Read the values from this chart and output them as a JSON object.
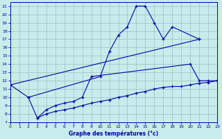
{
  "title": "Graphe des températures (°c)",
  "bg_color": "#c8eceb",
  "grid_color": "#9bbfbe",
  "line_color": "#0000aa",
  "xlim": [
    0,
    23
  ],
  "ylim": [
    7,
    21.5
  ],
  "xticks": [
    0,
    1,
    2,
    3,
    4,
    5,
    6,
    7,
    8,
    9,
    10,
    11,
    12,
    13,
    14,
    15,
    16,
    17,
    18,
    19,
    20,
    21,
    22,
    23
  ],
  "yticks": [
    7,
    8,
    9,
    10,
    11,
    12,
    13,
    14,
    15,
    16,
    17,
    18,
    19,
    20,
    21
  ],
  "series": [
    {
      "x": [
        0,
        2,
        10,
        11,
        12,
        13,
        14,
        15,
        16,
        17,
        18,
        21
      ],
      "y": [
        11.5,
        10.0,
        12.5,
        15.5,
        17.5,
        18.5,
        21.0,
        21.0,
        19.0,
        17.0,
        18.5,
        17.0
      ]
    },
    {
      "x": [
        0,
        21
      ],
      "y": [
        11.5,
        17.0
      ]
    },
    {
      "x": [
        2,
        3,
        4,
        5,
        6,
        7,
        8,
        9,
        20,
        21,
        22,
        23
      ],
      "y": [
        10.0,
        7.5,
        8.5,
        9.0,
        9.3,
        9.5,
        10.0,
        12.5,
        14.0,
        12.0,
        12.0,
        12.0
      ]
    },
    {
      "x": [
        3,
        4,
        5,
        6,
        7,
        8,
        9,
        10,
        11,
        12,
        13,
        14,
        15,
        16,
        17,
        18,
        19,
        20,
        21,
        22,
        23
      ],
      "y": [
        7.5,
        8.0,
        8.3,
        8.5,
        8.7,
        9.0,
        9.3,
        9.5,
        9.7,
        10.0,
        10.2,
        10.5,
        10.7,
        11.0,
        11.2,
        11.3,
        11.3,
        11.5,
        11.7,
        11.8,
        12.0
      ]
    }
  ]
}
